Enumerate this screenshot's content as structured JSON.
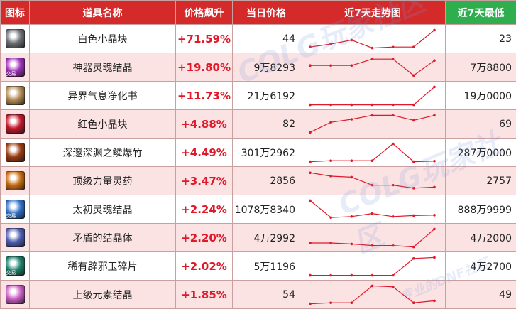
{
  "headers": {
    "icon": "图标",
    "name": "道具名称",
    "change": "价格飙升",
    "price": "当日价格",
    "trend": "近7天走势图",
    "low": "近7天最低"
  },
  "watermark": {
    "logo": "COLG玩家社区",
    "sub": "专业的DNF社区"
  },
  "colors": {
    "header_red": "#d42a2a",
    "header_green": "#2fae4e",
    "up_red": "#e0192a",
    "alt_row": "#fbe3e3",
    "trend_line": "#e0192a"
  },
  "items": [
    {
      "name": "白色小晶块",
      "change": "+71.59%",
      "price": "44",
      "low": "23",
      "icon": "white-crystal-icon",
      "icon_color": "#6b6e73",
      "badge": "",
      "trend": [
        0.1,
        0.25,
        0.45,
        0.05,
        0.1,
        0.1,
        0.95
      ]
    },
    {
      "name": "神器灵魂结晶",
      "change": "+19.80%",
      "price": "9万8293",
      "low": "7万8800",
      "icon": "artifact-soul-crystal-icon",
      "icon_color": "#9b2fb5",
      "badge": "交易",
      "trend": [
        0.6,
        0.6,
        0.6,
        0.92,
        0.92,
        0.1,
        0.85
      ]
    },
    {
      "name": "异界气息净化书",
      "change": "+11.73%",
      "price": "21万6192",
      "low": "19万0000",
      "icon": "purification-book-icon",
      "icon_color": "#b08a55",
      "badge": "",
      "trend": [
        0.05,
        0.05,
        0.05,
        0.05,
        0.05,
        0.05,
        0.95
      ]
    },
    {
      "name": "红色小晶块",
      "change": "+4.88%",
      "price": "82",
      "low": "69",
      "icon": "red-crystal-icon",
      "icon_color": "#c0182a",
      "badge": "",
      "trend": [
        0.1,
        0.6,
        0.75,
        0.95,
        0.95,
        0.7,
        0.95
      ]
    },
    {
      "name": "深邃深渊之鳞爆竹",
      "change": "+4.49%",
      "price": "301万2962",
      "low": "287万0000",
      "icon": "abyss-firecracker-icon",
      "icon_color": "#9a3b10",
      "badge": "",
      "trend": [
        0.05,
        0.1,
        0.1,
        0.1,
        0.95,
        0.05,
        0.08
      ]
    },
    {
      "name": "顶级力量灵药",
      "change": "+3.47%",
      "price": "2856",
      "low": "2757",
      "icon": "power-elixir-icon",
      "icon_color": "#c46a10",
      "badge": "",
      "trend": [
        0.92,
        0.75,
        0.7,
        0.3,
        0.3,
        0.15,
        0.2
      ]
    },
    {
      "name": "太初灵魂结晶",
      "change": "+2.24%",
      "price": "1078万8340",
      "low": "888万9999",
      "icon": "primordial-soul-crystal-icon",
      "icon_color": "#2f6fc4",
      "badge": "交易",
      "trend": [
        0.95,
        0.1,
        0.15,
        0.3,
        0.15,
        0.2,
        0.22
      ]
    },
    {
      "name": "矛盾的结晶体",
      "change": "+2.20%",
      "price": "4万2992",
      "low": "4万2000",
      "icon": "contradiction-crystal-icon",
      "icon_color": "#4b5bb0",
      "badge": "",
      "trend": [
        0.25,
        0.25,
        0.2,
        0.12,
        0.12,
        0.05,
        0.95
      ]
    },
    {
      "name": "稀有辟邪玉碎片",
      "change": "+2.02%",
      "price": "5万1196",
      "low": "4万2700",
      "icon": "rare-jade-fragment-icon",
      "icon_color": "#1b7f6a",
      "badge": "交易",
      "trend": [
        0.05,
        0.05,
        0.05,
        0.05,
        0.05,
        0.9,
        0.95
      ]
    },
    {
      "name": "上级元素结晶",
      "change": "+1.85%",
      "price": "54",
      "low": "49",
      "icon": "superior-element-crystal-icon",
      "icon_color": "#c95fc4",
      "badge": "",
      "trend": [
        0.05,
        0.1,
        0.1,
        0.95,
        0.9,
        0.1,
        0.2
      ]
    }
  ]
}
